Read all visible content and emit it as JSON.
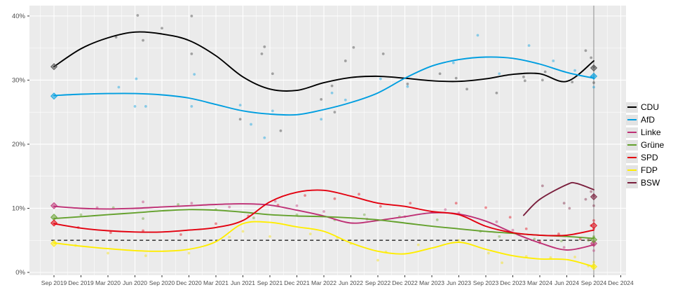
{
  "chart_data": {
    "type": "line",
    "title": "",
    "x_labels": [
      "Sep 2019",
      "Dec 2019",
      "Mar 2020",
      "Jun 2020",
      "Sep 2020",
      "Dec 2020",
      "Mar 2021",
      "Jun 2021",
      "Sep 2021",
      "Dec 2021",
      "Mar 2022",
      "Jun 2022",
      "Sep 2022",
      "Dec 2022",
      "Mar 2023",
      "Jun 2023",
      "Sep 2023",
      "Dec 2023",
      "Mar 2024",
      "Jun 2024",
      "Sep 2024",
      "Dec 2024"
    ],
    "y_ticks": [
      0,
      10,
      20,
      30,
      40
    ],
    "y_tick_labels": [
      "0%",
      "10%",
      "20%",
      "30%",
      "40%"
    ],
    "ylim": [
      0,
      42
    ],
    "grid": true,
    "legend_position": "right",
    "threshold_line": {
      "value": 5,
      "style": "dashed",
      "color": "#404040"
    },
    "election_date_line": {
      "x_label": "Sep 2024",
      "quarter": 20,
      "color": "#8c8c8c"
    },
    "series": [
      {
        "name": "CDU",
        "color": "#000000",
        "dot_color": "#3a3a3a",
        "values": [
          32.1,
          34.9,
          36.6,
          37.5,
          37.2,
          36.2,
          33.8,
          30.5,
          28.6,
          28.4,
          29.6,
          30.4,
          30.6,
          30.3,
          29.9,
          29.8,
          30.2,
          30.9,
          31.0,
          29.8,
          33.0
        ],
        "election_2019": 32.1,
        "election_2024": 31.9,
        "scatter": [
          [
            2.3,
            36.7
          ],
          [
            3.1,
            40.1
          ],
          [
            3.3,
            36.2
          ],
          [
            4.0,
            38.1
          ],
          [
            5.1,
            40.0
          ],
          [
            5.1,
            34.1
          ],
          [
            6.9,
            23.9
          ],
          [
            7.7,
            34.1
          ],
          [
            7.8,
            35.2
          ],
          [
            8.1,
            31.0
          ],
          [
            8.4,
            22.1
          ],
          [
            9.9,
            27.0
          ],
          [
            10.3,
            29.1
          ],
          [
            10.4,
            25.0
          ],
          [
            10.8,
            33.0
          ],
          [
            11.1,
            35.1
          ],
          [
            12.2,
            34.1
          ],
          [
            13.1,
            29.4
          ],
          [
            14.3,
            31.0
          ],
          [
            14.9,
            30.3
          ],
          [
            15.3,
            28.6
          ],
          [
            16.4,
            28.0
          ],
          [
            17.4,
            30.5
          ],
          [
            17.45,
            29.9
          ],
          [
            18.1,
            30.0
          ],
          [
            18.2,
            31.3
          ],
          [
            19.2,
            29.7
          ],
          [
            19.7,
            34.6
          ],
          [
            19.9,
            33.5
          ],
          [
            20,
            32.0
          ],
          [
            20,
            29.6
          ]
        ]
      },
      {
        "name": "AfD",
        "color": "#009EE0",
        "dot_color": "#009EE0",
        "values": [
          27.6,
          27.8,
          27.9,
          27.9,
          27.7,
          27.2,
          26.2,
          25.2,
          24.7,
          24.6,
          25.4,
          26.5,
          28.0,
          30.3,
          32.2,
          33.2,
          33.6,
          33.4,
          32.5,
          31.2,
          30.3
        ],
        "election_2019": 27.5,
        "election_2024": 30.6,
        "scatter": [
          [
            2.4,
            28.9
          ],
          [
            3.0,
            25.9
          ],
          [
            3.05,
            30.2
          ],
          [
            3.4,
            25.9
          ],
          [
            5.1,
            25.9
          ],
          [
            5.2,
            30.9
          ],
          [
            6.9,
            26.1
          ],
          [
            7.3,
            23.1
          ],
          [
            7.8,
            21.0
          ],
          [
            8.1,
            25.2
          ],
          [
            9.9,
            23.9
          ],
          [
            10.3,
            28.0
          ],
          [
            10.8,
            26.9
          ],
          [
            12.1,
            30.2
          ],
          [
            13.1,
            29.0
          ],
          [
            14.8,
            32.7
          ],
          [
            15.7,
            37.0
          ],
          [
            16.5,
            31.0
          ],
          [
            17.6,
            35.4
          ],
          [
            18.5,
            33.0
          ],
          [
            19.3,
            31.5
          ],
          [
            19.9,
            30.5
          ],
          [
            20,
            28.9
          ],
          [
            20,
            30.6
          ]
        ]
      },
      {
        "name": "Linke",
        "color": "#BE3075",
        "dot_color": "#BE3075",
        "values": [
          10.3,
          10.0,
          9.9,
          10.0,
          10.2,
          10.4,
          10.6,
          10.7,
          10.5,
          9.7,
          8.8,
          7.7,
          8.1,
          8.7,
          9.3,
          9.1,
          8.0,
          6.2,
          4.6,
          3.5,
          4.3
        ],
        "election_2019": 10.4,
        "election_2024": 4.5,
        "scatter": [
          [
            1.6,
            10.1
          ],
          [
            3.3,
            11.0
          ],
          [
            5.1,
            10.8
          ],
          [
            6.5,
            10.2
          ],
          [
            8.2,
            11.1
          ],
          [
            9.0,
            10.4
          ],
          [
            10.0,
            9.5
          ],
          [
            11.6,
            8.3
          ],
          [
            13.0,
            8.7
          ],
          [
            14.5,
            9.8
          ],
          [
            15.0,
            9.3
          ],
          [
            16.4,
            7.9
          ],
          [
            17.0,
            6.6
          ],
          [
            18.0,
            4.6
          ],
          [
            18.9,
            3.9
          ],
          [
            19.8,
            5.1
          ],
          [
            20,
            4.5
          ],
          [
            20,
            3.4
          ]
        ]
      },
      {
        "name": "Grüne",
        "color": "#64A12D",
        "dot_color": "#64A12D",
        "values": [
          8.4,
          8.7,
          9.0,
          9.3,
          9.6,
          9.8,
          9.7,
          9.4,
          9.0,
          8.8,
          8.7,
          8.5,
          8.2,
          7.7,
          7.2,
          6.8,
          6.4,
          6.1,
          5.8,
          5.6,
          5.3
        ],
        "election_2019": 8.6,
        "election_2024": 5.1,
        "scatter": [
          [
            1.0,
            9.0
          ],
          [
            2.2,
            10.1
          ],
          [
            3.3,
            8.4
          ],
          [
            4.6,
            10.6
          ],
          [
            6.0,
            9.8
          ],
          [
            7.4,
            8.5
          ],
          [
            9.0,
            9.0
          ],
          [
            10.4,
            8.2
          ],
          [
            11.5,
            9.0
          ],
          [
            12.8,
            8.7
          ],
          [
            14.2,
            8.2
          ],
          [
            15.8,
            6.4
          ],
          [
            16.5,
            5.6
          ],
          [
            17.8,
            5.2
          ],
          [
            18.8,
            4.9
          ],
          [
            19.8,
            5.0
          ],
          [
            20,
            5.6
          ],
          [
            20,
            4.3
          ]
        ]
      },
      {
        "name": "SPD",
        "color": "#E3000F",
        "dot_color": "#E3000F",
        "values": [
          7.6,
          6.9,
          6.5,
          6.3,
          6.3,
          6.6,
          7.0,
          8.1,
          11.0,
          12.5,
          12.8,
          11.9,
          10.8,
          10.3,
          9.5,
          9.0,
          7.2,
          6.2,
          5.8,
          5.8,
          6.6
        ],
        "election_2019": 7.7,
        "election_2024": 7.3,
        "scatter": [
          [
            0.9,
            7.0
          ],
          [
            2.1,
            6.2
          ],
          [
            3.3,
            6.5
          ],
          [
            4.7,
            5.9
          ],
          [
            6.0,
            7.6
          ],
          [
            7.2,
            8.8
          ],
          [
            8.3,
            10.5
          ],
          [
            9.3,
            12.0
          ],
          [
            10.4,
            11.5
          ],
          [
            11.3,
            12.2
          ],
          [
            12.1,
            10.3
          ],
          [
            13.2,
            10.8
          ],
          [
            14.9,
            10.8
          ],
          [
            16.0,
            10.1
          ],
          [
            16.9,
            8.6
          ],
          [
            17.5,
            6.8
          ],
          [
            18.0,
            4.8
          ],
          [
            18.7,
            6.0
          ],
          [
            19.5,
            5.2
          ],
          [
            19.9,
            7.3
          ],
          [
            20,
            6.8
          ],
          [
            20,
            8.1
          ]
        ]
      },
      {
        "name": "FDP",
        "color": "#FFED00",
        "dot_color": "#F5E000",
        "values": [
          4.6,
          4.1,
          3.7,
          3.4,
          3.3,
          3.6,
          4.8,
          7.6,
          7.8,
          7.1,
          6.4,
          4.6,
          3.3,
          2.9,
          3.8,
          4.7,
          3.6,
          2.6,
          2.1,
          2.0,
          0.9
        ],
        "election_2019": 4.5,
        "election_2024": 0.9,
        "scatter": [
          [
            0.8,
            4.2
          ],
          [
            2.0,
            3.0
          ],
          [
            3.4,
            2.6
          ],
          [
            5.0,
            3.0
          ],
          [
            6.5,
            5.5
          ],
          [
            7.0,
            6.4
          ],
          [
            8.0,
            5.6
          ],
          [
            9.5,
            6.0
          ],
          [
            10.5,
            5.4
          ],
          [
            11.0,
            4.5
          ],
          [
            12.0,
            1.9
          ],
          [
            12.3,
            3.2
          ],
          [
            13.5,
            4.3
          ],
          [
            15.0,
            5.0
          ],
          [
            16.1,
            3.0
          ],
          [
            16.6,
            1.5
          ],
          [
            17.5,
            2.5
          ],
          [
            18.4,
            2.3
          ],
          [
            19.3,
            2.4
          ],
          [
            19.8,
            1.0
          ],
          [
            20,
            0.9
          ],
          [
            20,
            1.6
          ]
        ]
      },
      {
        "name": "BSW",
        "color": "#7A1F3D",
        "dot_color": "#7A1F3D",
        "points": [
          [
            17.4,
            8.9
          ],
          [
            18,
            11.4
          ],
          [
            19,
            13.7
          ],
          [
            19.35,
            13.9
          ],
          [
            20,
            12.9
          ]
        ],
        "election_2024": 11.8,
        "scatter": [
          [
            18.1,
            13.5
          ],
          [
            18.9,
            10.8
          ],
          [
            19.1,
            10.0
          ],
          [
            19.7,
            11.4
          ],
          [
            19.9,
            12.6
          ],
          [
            20,
            11.9
          ],
          [
            20,
            10.4
          ]
        ]
      }
    ]
  },
  "legend": {
    "items": [
      {
        "label": "CDU",
        "color": "#000000"
      },
      {
        "label": "AfD",
        "color": "#009EE0"
      },
      {
        "label": "Linke",
        "color": "#BE3075"
      },
      {
        "label": "Grüne",
        "color": "#64A12D"
      },
      {
        "label": "SPD",
        "color": "#E3000F"
      },
      {
        "label": "FDP",
        "color": "#FFED00"
      },
      {
        "label": "BSW",
        "color": "#7A1F3D"
      }
    ]
  },
  "panel": {
    "background": "#EBEBEB",
    "gridline_color": "#FFFFFF",
    "axis_text_color": "#4D4D4D"
  }
}
